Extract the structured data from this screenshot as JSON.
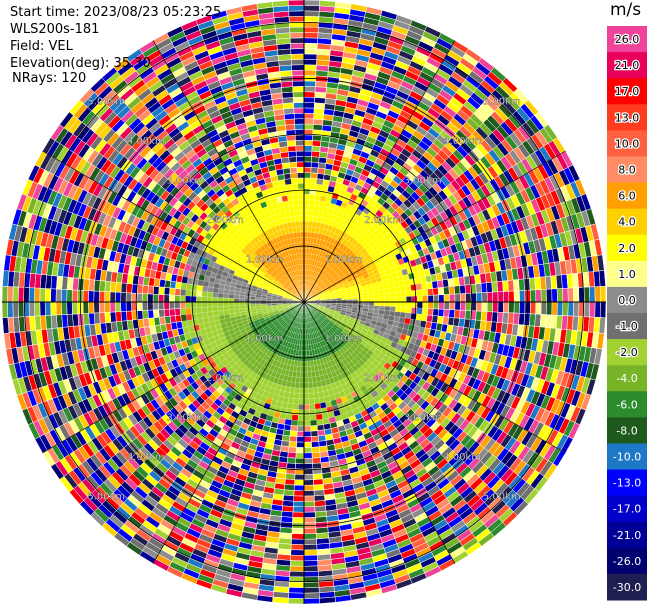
{
  "header": {
    "start_time": "Start time: 2023/08/23 05:23:25",
    "station": "WLS200s-181",
    "field": "Field: VEL",
    "elevation": "Elevation(deg): 35.30",
    "nrays": "NRays: 120"
  },
  "colorbar": {
    "unit": "m/s",
    "levels": [
      {
        "label": "26.0",
        "color": "#f0449a"
      },
      {
        "label": "21.0",
        "color": "#e8005a"
      },
      {
        "label": "17.0",
        "color": "#ff0000"
      },
      {
        "label": "13.0",
        "color": "#ff3c1e"
      },
      {
        "label": "10.0",
        "color": "#ff6040"
      },
      {
        "label": "8.0",
        "color": "#ff8c64"
      },
      {
        "label": "6.0",
        "color": "#ffa000"
      },
      {
        "label": "4.0",
        "color": "#ffd000"
      },
      {
        "label": "2.0",
        "color": "#ffff00"
      },
      {
        "label": "1.0",
        "color": "#ffff8c"
      },
      {
        "label": "0.0",
        "color": "#8c8c8c"
      },
      {
        "label": "-1.0",
        "color": "#707070"
      },
      {
        "label": "-2.0",
        "color": "#a0d232"
      },
      {
        "label": "-4.0",
        "color": "#78b428"
      },
      {
        "label": "-6.0",
        "color": "#2d8c2d"
      },
      {
        "label": "-8.0",
        "color": "#1e5a1e"
      },
      {
        "label": "-10.0",
        "color": "#1e78c8"
      },
      {
        "label": "-13.0",
        "color": "#0000ff"
      },
      {
        "label": "-17.0",
        "color": "#0000c8"
      },
      {
        "label": "-21.0",
        "color": "#000096"
      },
      {
        "label": "-26.0",
        "color": "#00006e"
      },
      {
        "label": "-30.0",
        "color": "#1e1e50"
      }
    ]
  },
  "chart_data": {
    "type": "heatmap",
    "projection": "polar PPI",
    "field": "VEL",
    "units": "m/s",
    "n_rays": 120,
    "elevation_deg": 35.3,
    "range_rings_km": [
      1.0,
      2.0,
      3.0,
      4.0,
      5.0
    ],
    "ring_labels": [
      "1.00km",
      "2.00km",
      "3.00km",
      "4.00km",
      "5.00km"
    ],
    "azimuth_spokes_deg": [
      0,
      30,
      60,
      90,
      120,
      150,
      180,
      210,
      240,
      270,
      300,
      330
    ],
    "signal_region_max_range_km": 2.2,
    "pattern_description_values": {
      "northern_sector_velocity_ms": [
        2.0,
        6.0
      ],
      "southern_sector_velocity_ms": [
        -2.0,
        -6.0
      ],
      "clutter_beyond_range": true
    }
  }
}
